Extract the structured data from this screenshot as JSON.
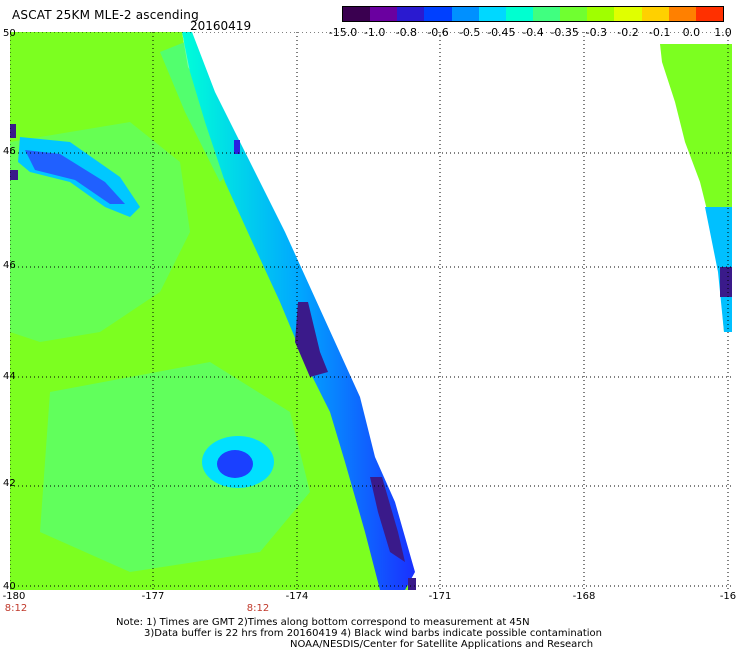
{
  "header": {
    "title": "ASCAT 25KM MLE-2 ascending",
    "date": "20160419"
  },
  "colorbar": {
    "labels": [
      "-15.0",
      "-1.0",
      "-0.8",
      "-0.6",
      "-0.5",
      "-0.45",
      "-0.4",
      "-0.35",
      "-0.3",
      "-0.2",
      "-0.1",
      "0.0",
      "1.0"
    ],
    "colors": [
      "#3a0050",
      "#6a00a0",
      "#2a1ad0",
      "#0040ff",
      "#0090ff",
      "#00d8ff",
      "#00ffd0",
      "#40ff80",
      "#70ff30",
      "#a0ff00",
      "#e0ff00",
      "#ffd000",
      "#ff8000",
      "#ff3000"
    ]
  },
  "map": {
    "lat_labels": [
      "50",
      "46",
      "46",
      "44",
      "42",
      "40"
    ],
    "lon_labels": [
      "-180",
      "-177",
      "-174",
      "-171",
      "-168",
      "-16"
    ],
    "time_labels": [
      "8:12",
      "8:12"
    ],
    "grid": true,
    "colors": {
      "background": "#ffffff",
      "field": "#7cff20",
      "field_alt": "#5cff5c",
      "gradient_1": "#00ffe0",
      "gradient_2": "#00c0ff",
      "gradient_3": "#1030ff",
      "gradient_4": "#4a1a9a",
      "grid": "#000000"
    }
  },
  "notes": {
    "line1": "Note: 1) Times are GMT 2)Times along bottom correspond to measurement at 45N",
    "line2": "3)Data buffer is 22 hrs from 20160419 4) Black wind barbs indicate possible contamination",
    "line3": "NOAA/NESDIS/Center for Satellite Applications and Research"
  }
}
